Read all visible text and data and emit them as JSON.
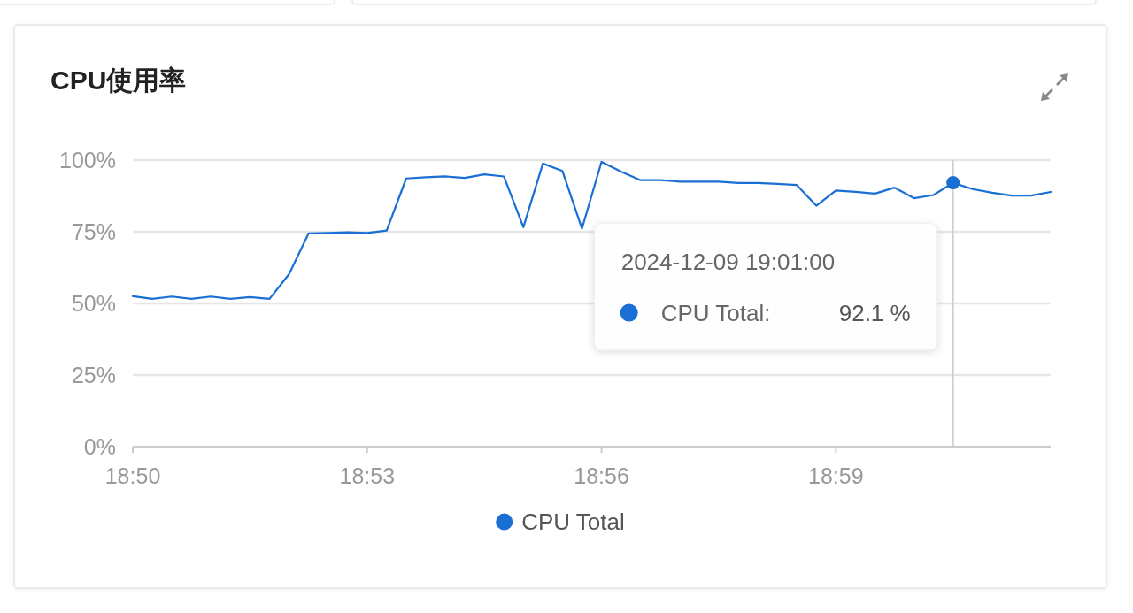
{
  "chart_data": {
    "type": "line",
    "title": "CPU使用率",
    "categories": [
      "18:50",
      null,
      null,
      null,
      null,
      null,
      null,
      null,
      null,
      null,
      null,
      null,
      "18:53",
      null,
      null,
      null,
      null,
      null,
      null,
      null,
      null,
      null,
      null,
      null,
      "18:56",
      null,
      null,
      null,
      null,
      null,
      null,
      null,
      null,
      null,
      null,
      null,
      "18:59",
      null,
      null,
      null,
      null,
      null,
      null,
      null,
      null,
      null,
      null,
      null
    ],
    "series": [
      {
        "name": "CPU Total",
        "color": "#1a6fd4",
        "values": [
          52.5,
          51.6,
          52.4,
          51.6,
          52.4,
          51.6,
          52.2,
          51.6,
          60.2,
          74.4,
          74.6,
          74.8,
          74.6,
          75.4,
          93.6,
          94.0,
          94.3,
          93.8,
          95.0,
          94.3,
          76.6,
          98.8,
          96.2,
          76.1,
          99.4,
          96,
          93,
          93,
          92.5,
          92.5,
          92.5,
          92,
          92,
          91.7,
          91.3,
          84.1,
          89.4,
          88.9,
          88.3,
          90.4,
          86.7,
          87.8,
          92.1,
          89.9,
          88.6,
          87.6,
          87.6,
          88.9
        ]
      }
    ],
    "ylim": [
      0,
      100
    ],
    "yticks": [
      {
        "value": 0,
        "label": "0%"
      },
      {
        "value": 25,
        "label": "25%"
      },
      {
        "value": 50,
        "label": "50%"
      },
      {
        "value": 75,
        "label": "75%"
      },
      {
        "value": 100,
        "label": "100%"
      }
    ],
    "grid": "y",
    "legend": "bottom",
    "annotations": [
      {
        "text": "2024-12-09 19:01:00",
        "y": 92.1
      },
      "CPU Total:",
      "92.1 %"
    ]
  }
}
